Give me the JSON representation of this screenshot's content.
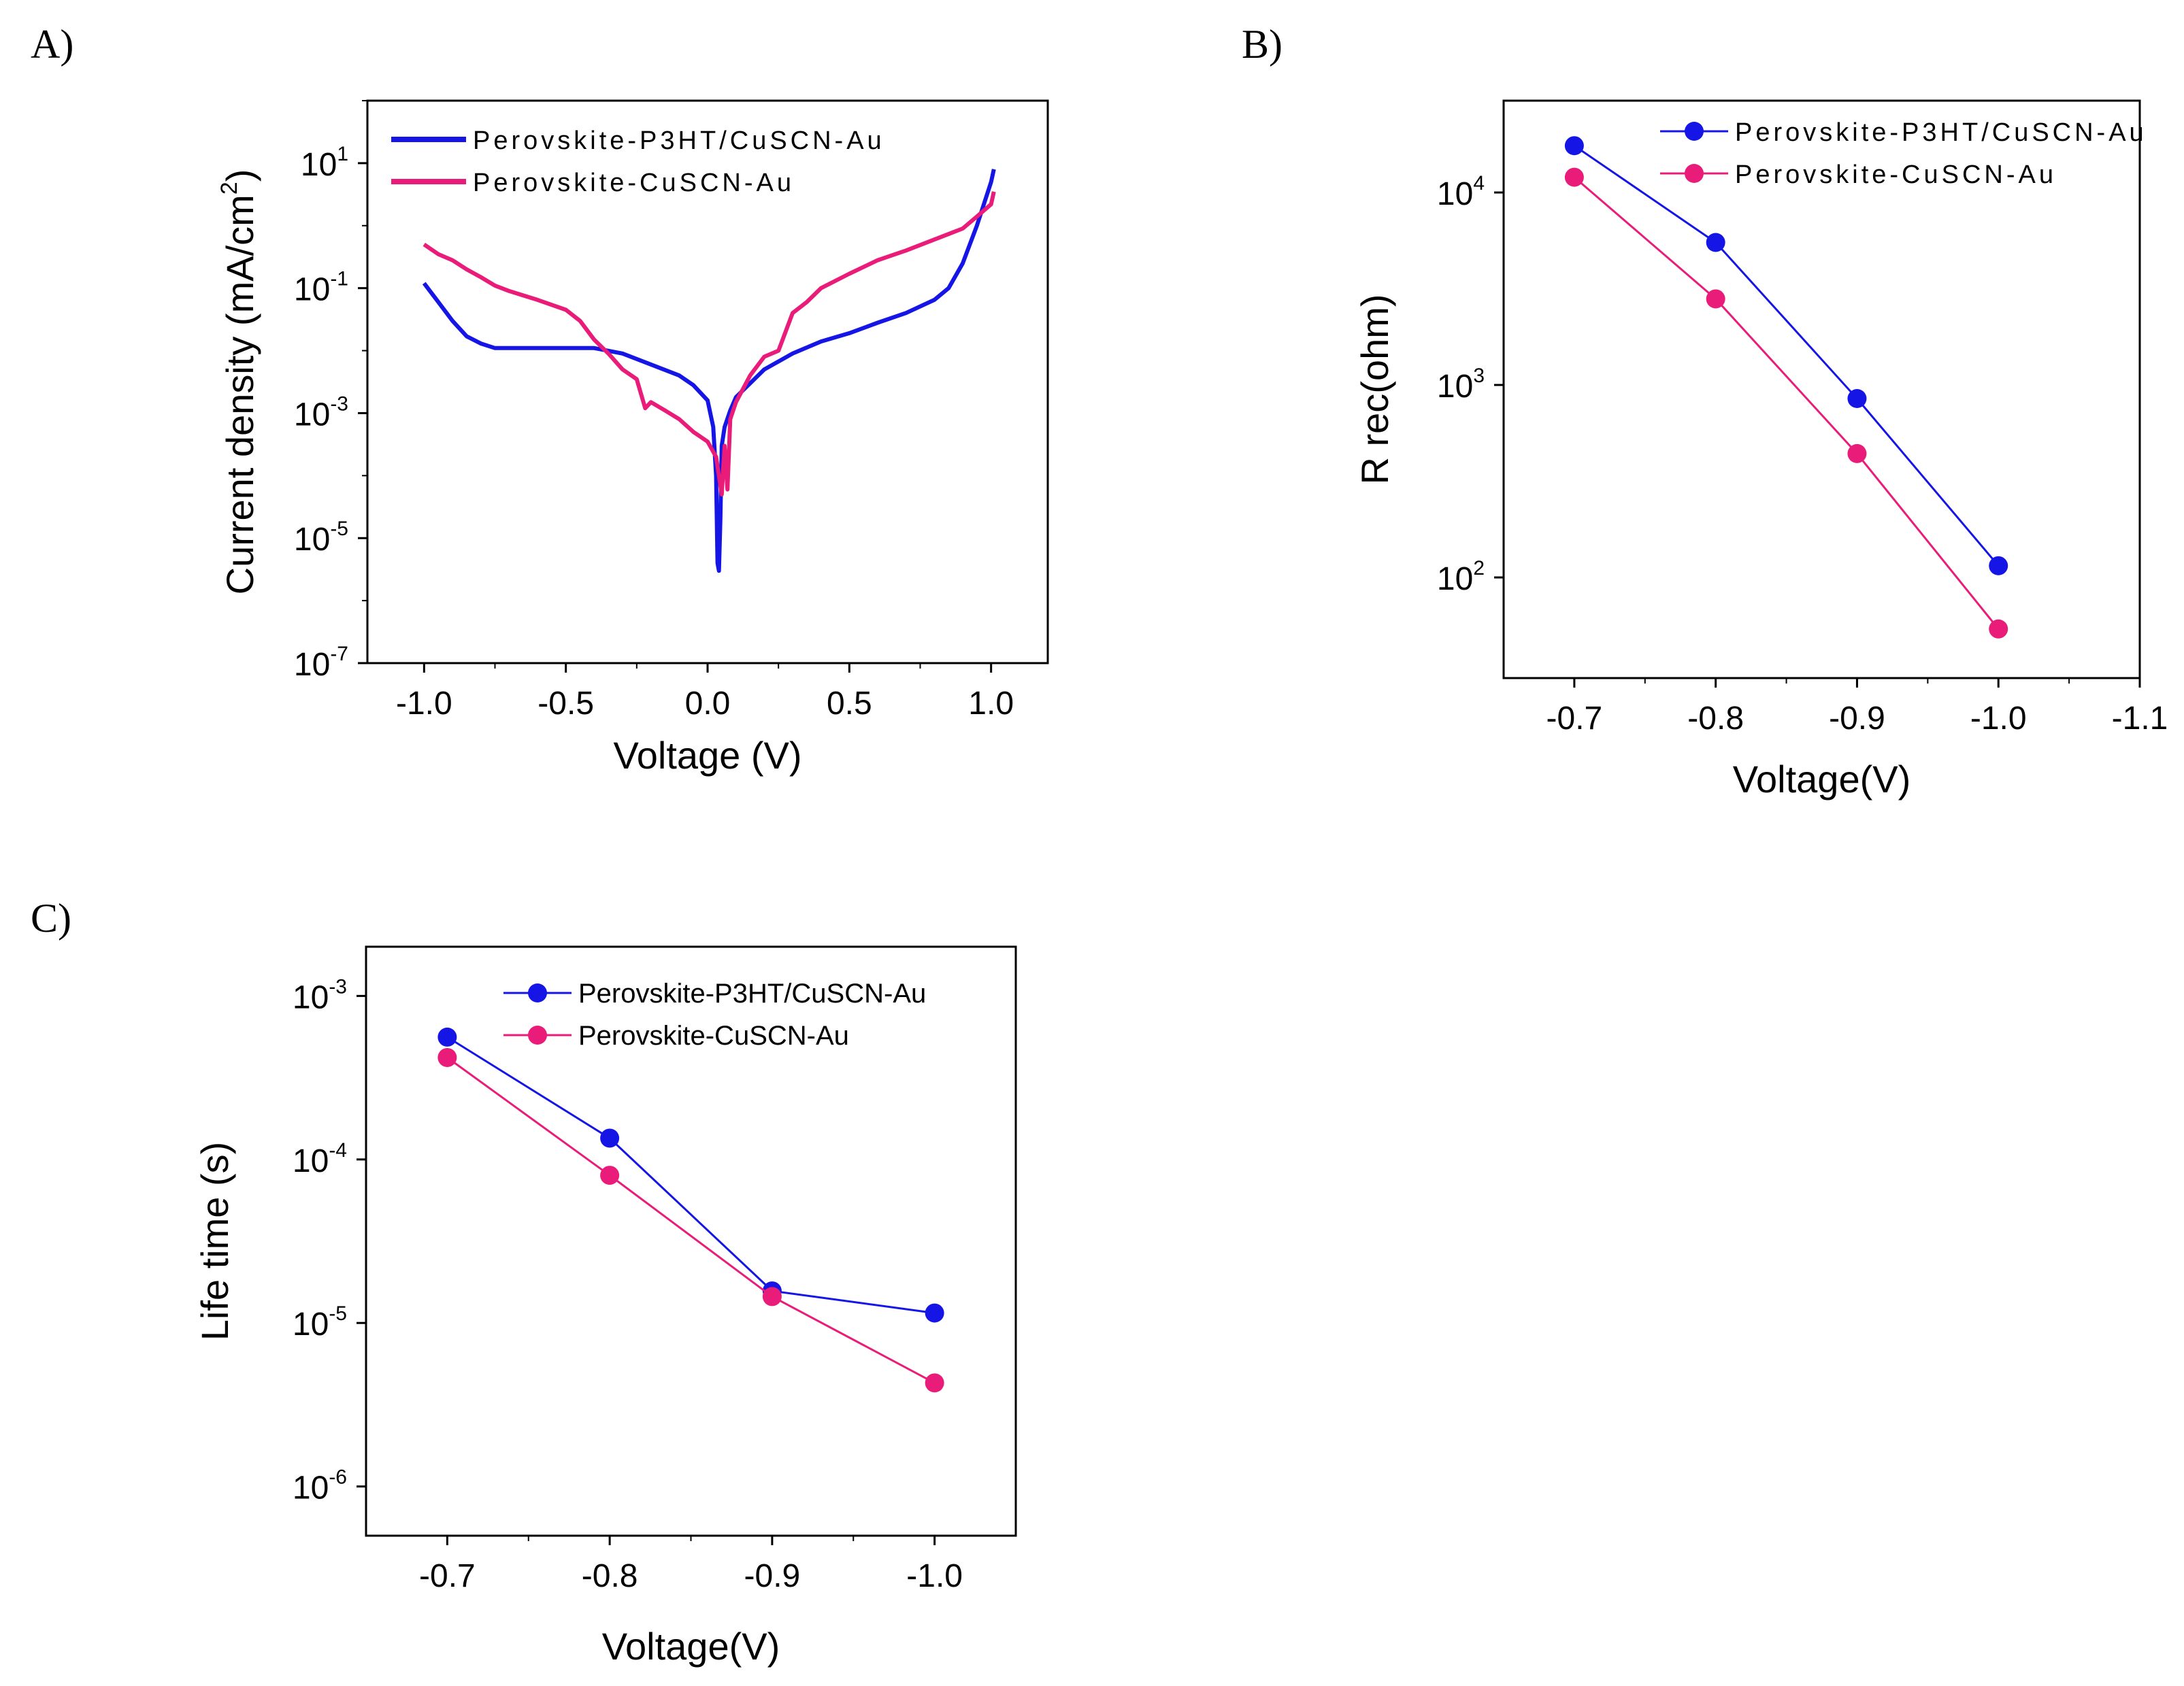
{
  "panels": {
    "a": "A)",
    "b": "B)",
    "c": "C)"
  },
  "colors": {
    "p3ht": "#1515e6",
    "cuscn": "#ea1c79",
    "axis": "#000000"
  },
  "chart_data": [
    {
      "id": "A",
      "type": "line",
      "title": "",
      "xlabel": "Voltage (V)",
      "ylabel": "Current density (mA/cm",
      "ylabel_sup": "2",
      "ylabel_close": ")",
      "yscale": "log",
      "xlim": [
        -1.2,
        1.2
      ],
      "ylim": [
        1e-07,
        100
      ],
      "xticks": [
        -1.0,
        -0.5,
        0.0,
        0.5,
        1.0
      ],
      "xtick_labels": [
        "-1.0",
        "-0.5",
        "0.0",
        "0.5",
        "1.0"
      ],
      "yticks": [
        {
          "base": "10",
          "exp": "1",
          "value": 10
        },
        {
          "base": "10",
          "exp": "-1",
          "value": 0.1
        },
        {
          "base": "10",
          "exp": "-3",
          "value": 0.001
        },
        {
          "base": "10",
          "exp": "-5",
          "value": 1e-05
        },
        {
          "base": "10",
          "exp": "-7",
          "value": 1e-07
        }
      ],
      "legend": "top-left",
      "series": [
        {
          "name": "Perovskite-P3HT/CuSCN-Au",
          "color": "#1515e6",
          "x": [
            -1.0,
            -0.95,
            -0.9,
            -0.85,
            -0.8,
            -0.75,
            -0.7,
            -0.6,
            -0.5,
            -0.4,
            -0.3,
            -0.2,
            -0.1,
            -0.05,
            0.0,
            0.02,
            0.03,
            0.035,
            0.04,
            0.045,
            0.05,
            0.06,
            0.08,
            0.1,
            0.15,
            0.2,
            0.3,
            0.4,
            0.5,
            0.6,
            0.7,
            0.8,
            0.85,
            0.9,
            0.95,
            1.0,
            1.01
          ],
          "y": [
            0.12,
            0.06,
            0.03,
            0.017,
            0.013,
            0.011,
            0.011,
            0.011,
            0.011,
            0.011,
            0.009,
            0.006,
            0.004,
            0.0028,
            0.0016,
            0.0006,
            0.0001,
            4e-06,
            3e-06,
            2e-05,
            0.0003,
            0.0006,
            0.0011,
            0.0018,
            0.003,
            0.005,
            0.009,
            0.014,
            0.019,
            0.028,
            0.04,
            0.065,
            0.1,
            0.25,
            1.0,
            5,
            8
          ]
        },
        {
          "name": "Perovskite-CuSCN-Au",
          "color": "#ea1c79",
          "x": [
            -1.0,
            -0.95,
            -0.9,
            -0.85,
            -0.8,
            -0.75,
            -0.7,
            -0.6,
            -0.5,
            -0.45,
            -0.4,
            -0.35,
            -0.3,
            -0.25,
            -0.22,
            -0.2,
            -0.15,
            -0.1,
            -0.05,
            0.0,
            0.03,
            0.05,
            0.06,
            0.07,
            0.08,
            0.1,
            0.15,
            0.2,
            0.25,
            0.3,
            0.35,
            0.4,
            0.5,
            0.6,
            0.7,
            0.8,
            0.9,
            0.95,
            1.0,
            1.01
          ],
          "y": [
            0.5,
            0.35,
            0.28,
            0.2,
            0.15,
            0.11,
            0.09,
            0.065,
            0.045,
            0.03,
            0.015,
            0.009,
            0.005,
            0.0035,
            0.0012,
            0.0015,
            0.0011,
            0.0008,
            0.0005,
            0.00035,
            0.0002,
            5e-05,
            0.0003,
            6e-05,
            0.0008,
            0.0015,
            0.004,
            0.008,
            0.01,
            0.04,
            0.06,
            0.1,
            0.17,
            0.28,
            0.4,
            0.6,
            0.9,
            1.4,
            2.2,
            3.5
          ]
        }
      ]
    },
    {
      "id": "B",
      "type": "line",
      "title": "",
      "xlabel": "Voltage(V)",
      "ylabel": "R rec(ohm)",
      "yscale": "log",
      "xlim": [
        -0.65,
        -1.1
      ],
      "ylim": [
        30,
        30000
      ],
      "xticks": [
        -0.7,
        -0.8,
        -0.9,
        -1.0,
        -1.1
      ],
      "xtick_labels": [
        "-0.7",
        "-0.8",
        "-0.9",
        "-1.0",
        "-1.1"
      ],
      "yticks": [
        {
          "base": "10",
          "exp": "4",
          "value": 10000
        },
        {
          "base": "10",
          "exp": "3",
          "value": 1000
        },
        {
          "base": "10",
          "exp": "2",
          "value": 100
        }
      ],
      "legend": "top-right",
      "series": [
        {
          "name": "Perovskite-P3HT/CuSCN-Au",
          "color": "#1515e6",
          "x": [
            -0.7,
            -0.8,
            -0.9,
            -1.0
          ],
          "y": [
            17500,
            5500,
            850,
            115
          ]
        },
        {
          "name": "Perovskite-CuSCN-Au",
          "color": "#ea1c79",
          "x": [
            -0.7,
            -0.8,
            -0.9,
            -1.0
          ],
          "y": [
            12000,
            2800,
            440,
            54
          ]
        }
      ]
    },
    {
      "id": "C",
      "type": "line",
      "title": "",
      "xlabel": "Voltage(V)",
      "ylabel": "Life time (s)",
      "yscale": "log",
      "xlim": [
        -0.65,
        -1.05
      ],
      "ylim": [
        5e-07,
        0.002
      ],
      "xticks": [
        -0.7,
        -0.8,
        -0.9,
        -1.0
      ],
      "xtick_labels": [
        "-0.7",
        "-0.8",
        "-0.9",
        "-1.0"
      ],
      "yticks": [
        {
          "base": "10",
          "exp": "-3",
          "value": 0.001
        },
        {
          "base": "10",
          "exp": "-4",
          "value": 0.0001
        },
        {
          "base": "10",
          "exp": "-5",
          "value": 1e-05
        },
        {
          "base": "10",
          "exp": "-6",
          "value": 1e-06
        }
      ],
      "legend": "top-right",
      "series": [
        {
          "name": "Perovskite-P3HT/CuSCN-Au",
          "color": "#1515e6",
          "x": [
            -0.7,
            -0.8,
            -0.9,
            -1.0
          ],
          "y": [
            0.00056,
            0.000135,
            1.57e-05,
            1.15e-05
          ]
        },
        {
          "name": "Perovskite-CuSCN-Au",
          "color": "#ea1c79",
          "x": [
            -0.7,
            -0.8,
            -0.9,
            -1.0
          ],
          "y": [
            0.00042,
            8e-05,
            1.45e-05,
            4.3e-06
          ]
        }
      ]
    }
  ]
}
